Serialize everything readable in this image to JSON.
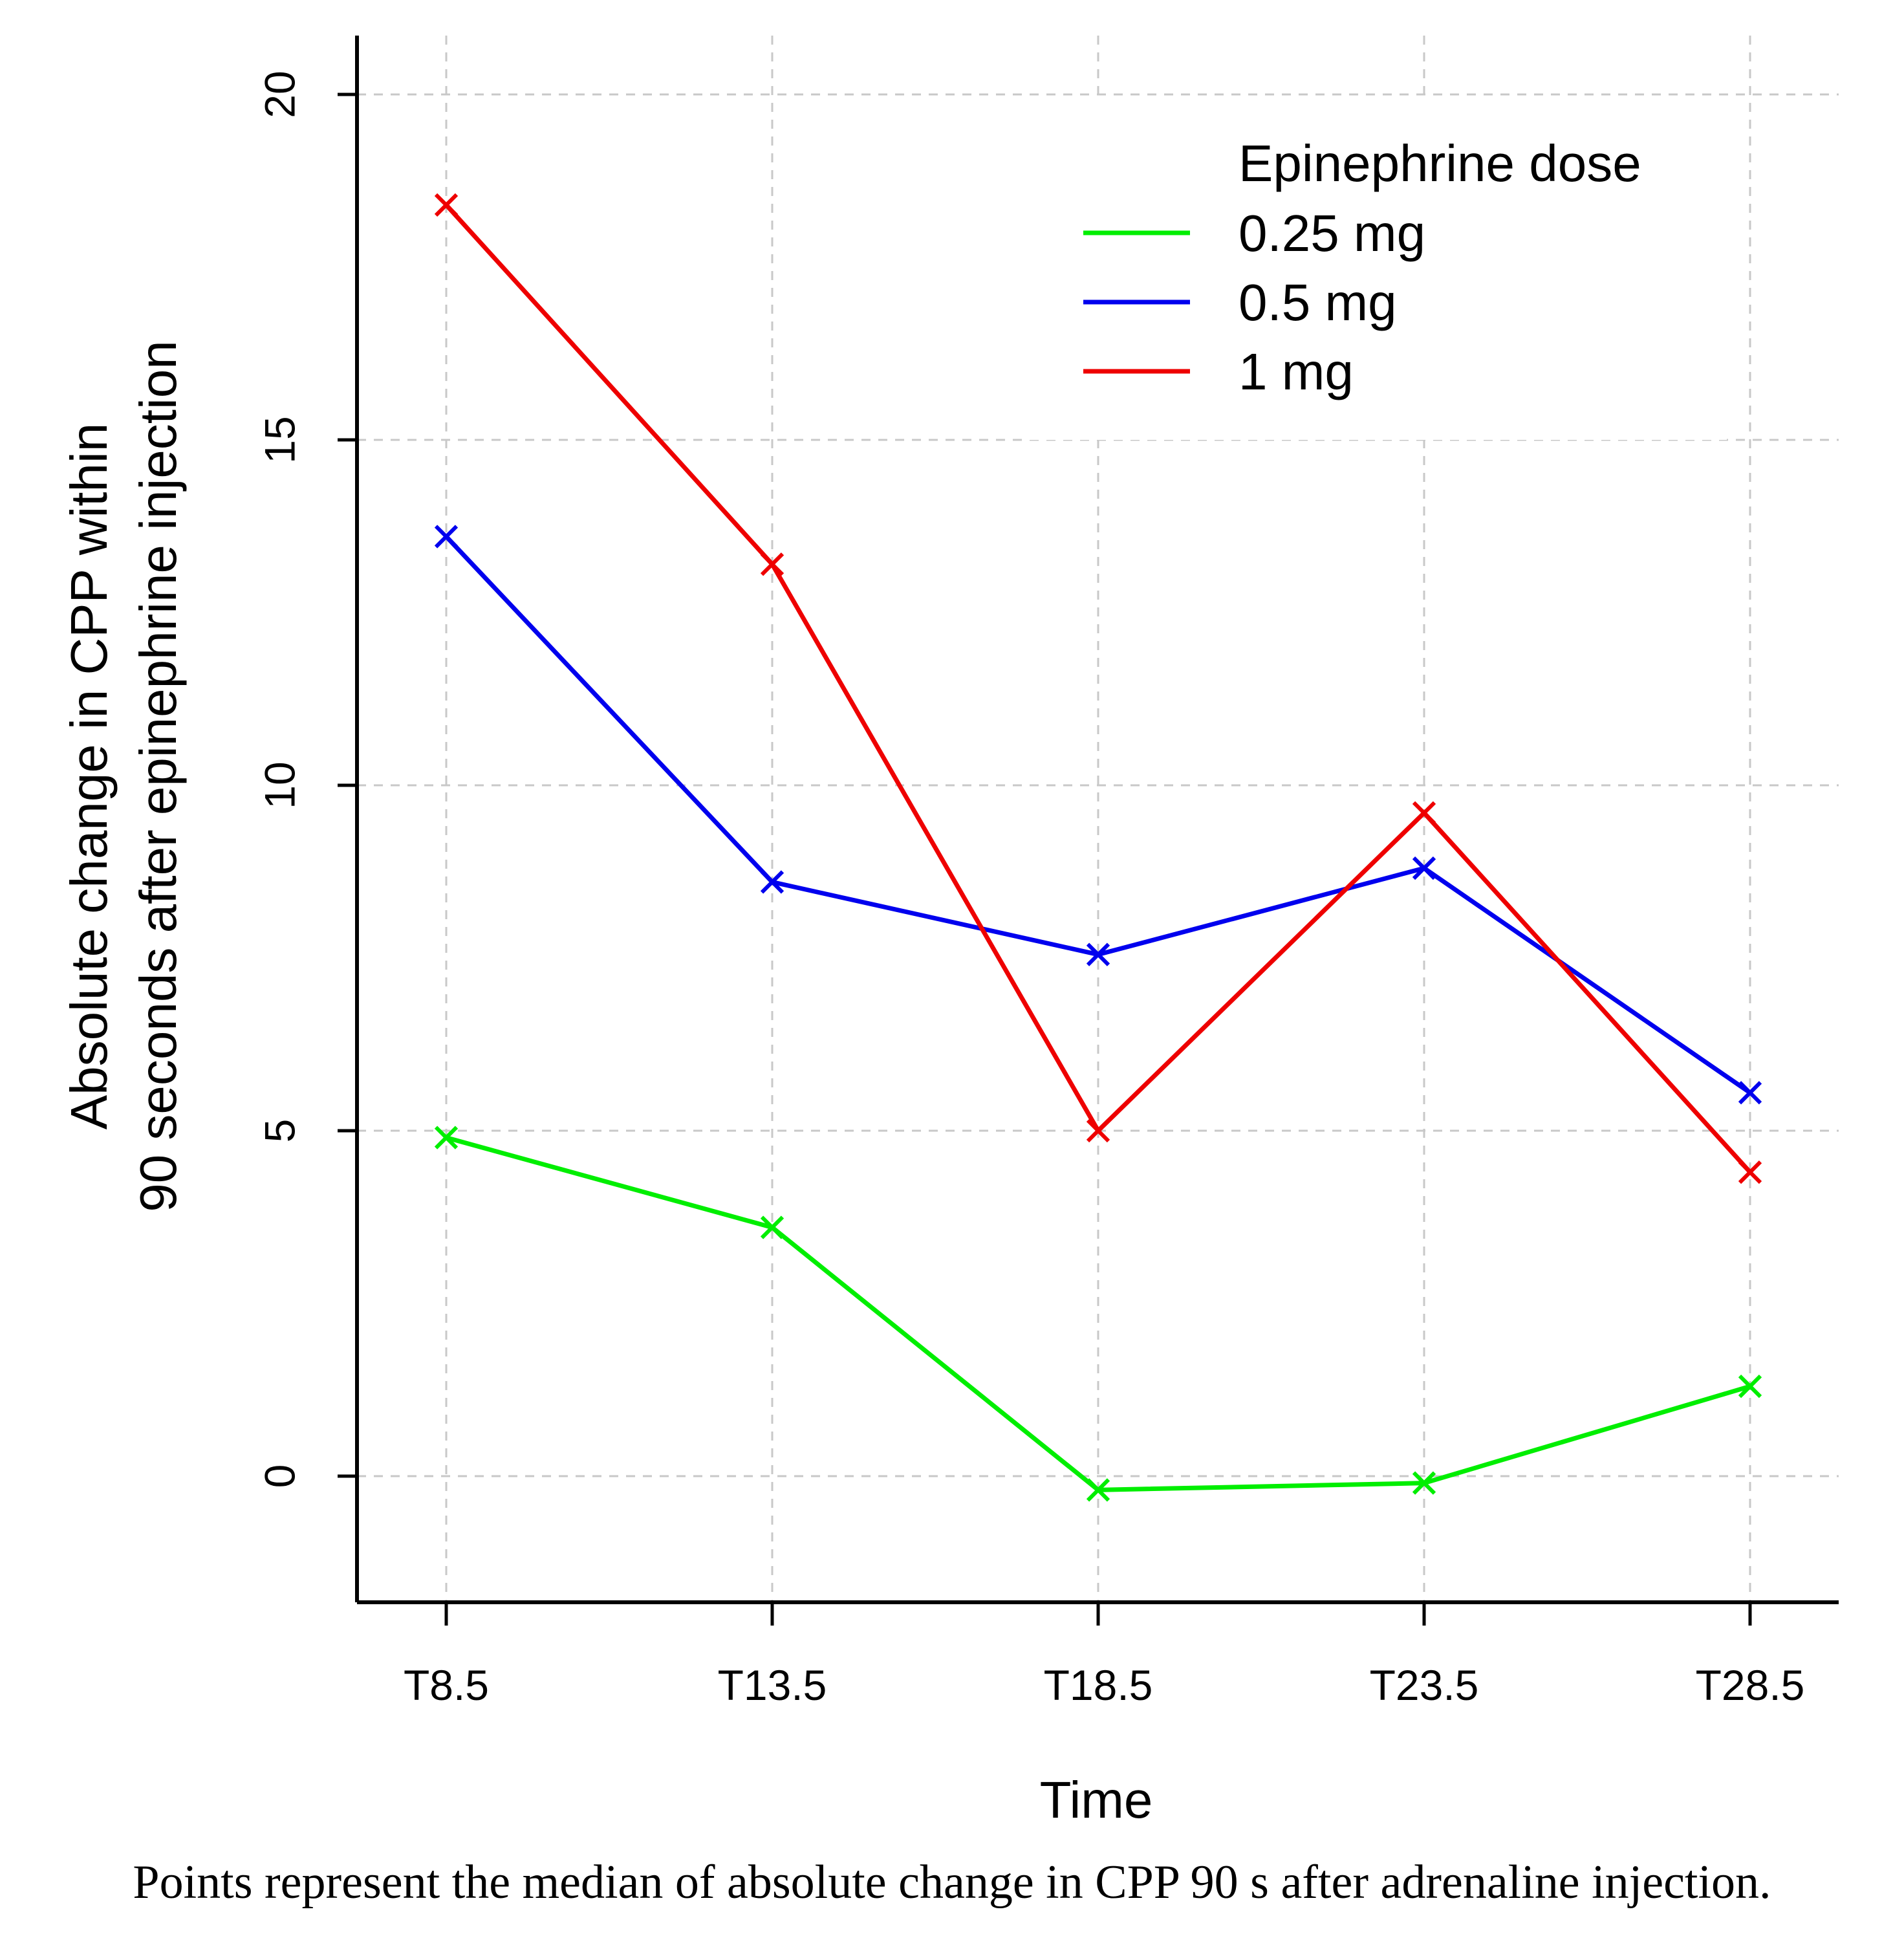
{
  "chart_data": {
    "type": "line",
    "title": "",
    "xlabel": "Time",
    "ylabel_lines": [
      "Absolute change in CPP within",
      "90 seconds after epinephrine injection"
    ],
    "categories": [
      "T8.5",
      "T13.5",
      "T18.5",
      "T23.5",
      "T28.5"
    ],
    "yticks": [
      "0",
      "5",
      "10",
      "15",
      "20"
    ],
    "ylim": [
      -1.85,
      20.8
    ],
    "grid": true,
    "marker": "x",
    "legend": {
      "title": "Epinephrine dose",
      "position": "top-right"
    },
    "series": [
      {
        "name": "0.25 mg",
        "color": "#00ee00",
        "values": [
          4.9,
          3.6,
          -0.2,
          -0.1,
          1.3
        ]
      },
      {
        "name": "0.5 mg",
        "color": "#0000ee",
        "values": [
          13.6,
          8.6,
          7.55,
          8.8,
          5.55
        ]
      },
      {
        "name": "1 mg",
        "color": "#ee0000",
        "values": [
          18.4,
          13.2,
          5.0,
          9.6,
          4.4
        ]
      }
    ]
  },
  "caption": "Points represent the median of absolute change in CPP 90 s after adrenaline injection."
}
